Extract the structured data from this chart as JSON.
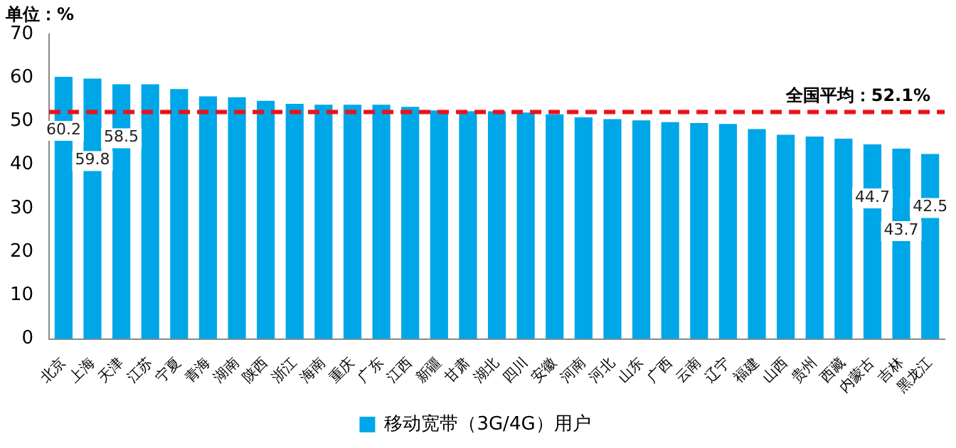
{
  "chart_data": {
    "type": "bar",
    "categories": [
      "北京",
      "上海",
      "天津",
      "江苏",
      "宁夏",
      "青海",
      "湖南",
      "陕西",
      "浙江",
      "海南",
      "重庆",
      "广东",
      "江西",
      "新疆",
      "甘肃",
      "湖北",
      "四川",
      "安徽",
      "河南",
      "河北",
      "山东",
      "广西",
      "云南",
      "辽宁",
      "福建",
      "山西",
      "贵州",
      "西藏",
      "内蒙古",
      "吉林",
      "黑龙江"
    ],
    "series": [
      {
        "name": "移动宽带（3G/4G）用户",
        "color": "#00a7e8",
        "values": [
          60.2,
          59.8,
          58.5,
          58.5,
          57.4,
          55.7,
          55.5,
          54.7,
          54.0,
          53.8,
          53.8,
          53.8,
          53.3,
          52.5,
          52.3,
          52.3,
          52.0,
          51.6,
          50.9,
          50.5,
          50.2,
          49.8,
          49.6,
          49.4,
          48.2,
          46.9,
          46.5,
          46.0,
          44.7,
          43.7,
          42.5
        ],
        "value_labels": [
          "60.2",
          "59.8",
          "58.5",
          null,
          null,
          null,
          null,
          null,
          null,
          null,
          null,
          null,
          null,
          null,
          null,
          null,
          null,
          null,
          null,
          null,
          null,
          null,
          null,
          null,
          null,
          null,
          null,
          null,
          "44.7",
          "43.7",
          "42.5"
        ]
      }
    ],
    "ylim": [
      0,
      70
    ],
    "yticks": [
      0,
      10,
      20,
      30,
      40,
      50,
      60,
      70
    ],
    "grid": false,
    "legend": "bottom",
    "ref_lines": [
      {
        "axis": "y",
        "value": 52.1,
        "label": "全国平均：52.1%",
        "color": "#e8141b",
        "line_style": "dashed"
      }
    ],
    "annotations": [
      "单位：%"
    ]
  }
}
